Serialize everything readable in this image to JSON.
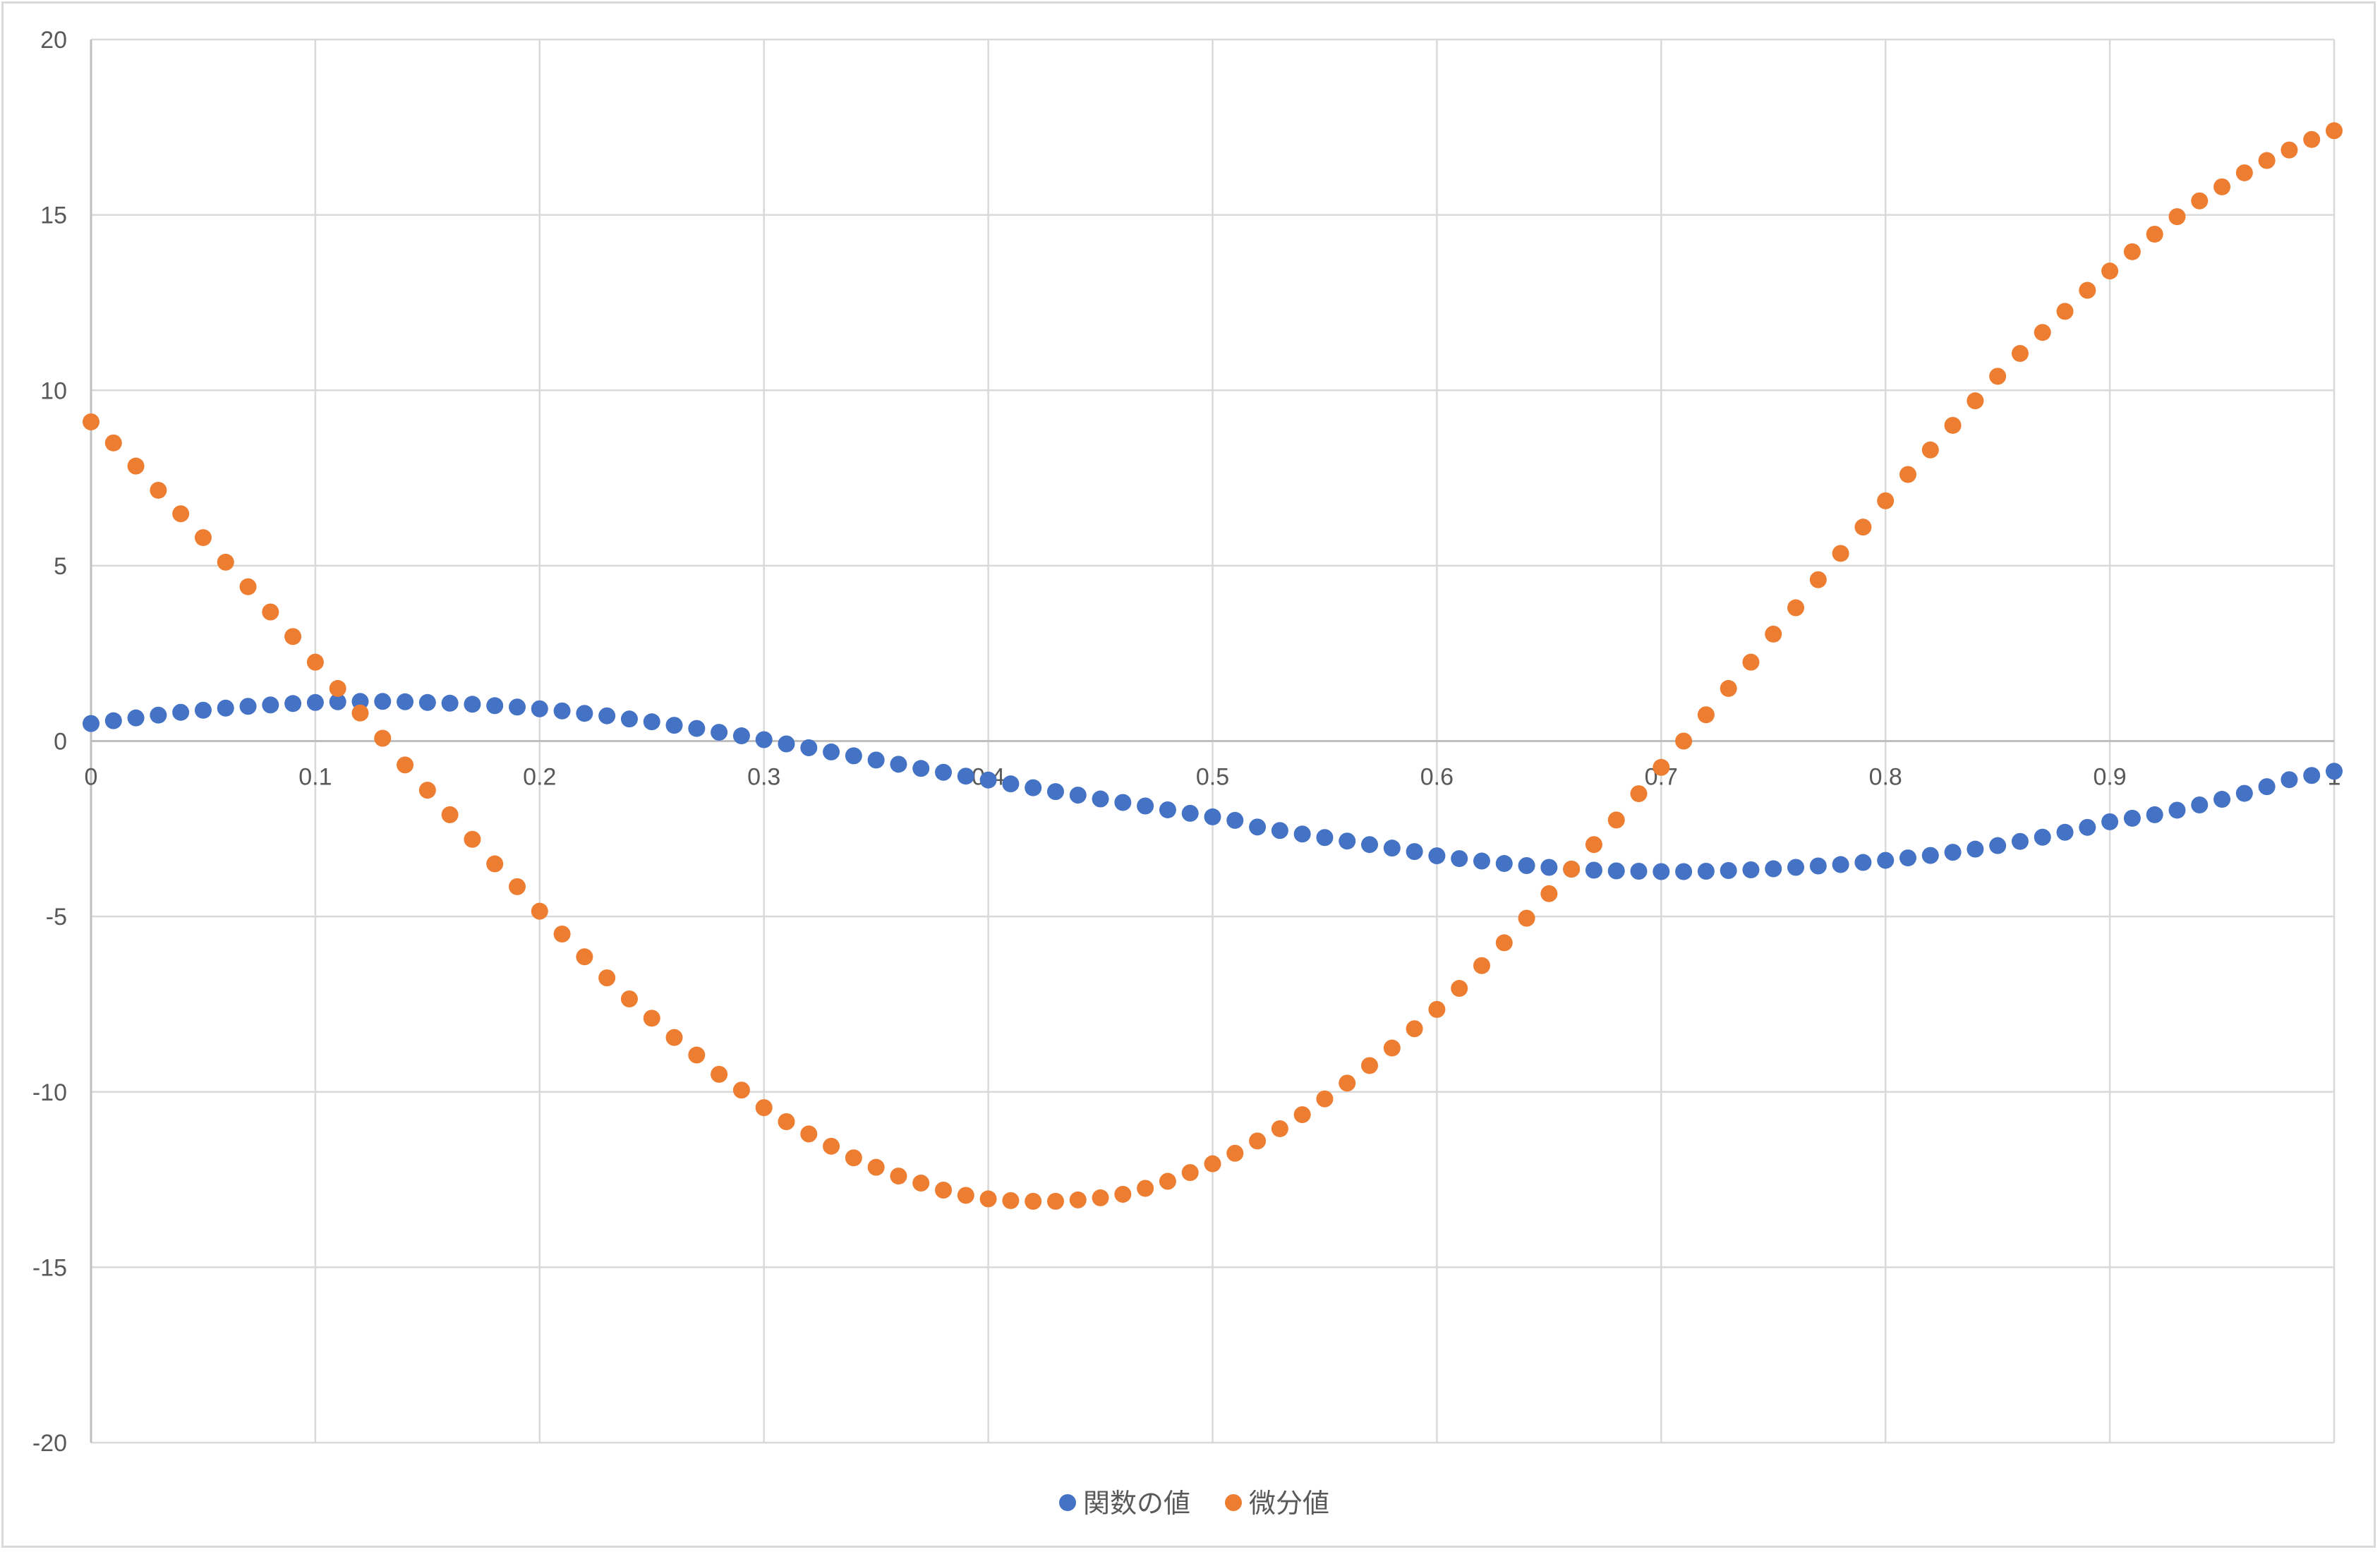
{
  "chart_data": {
    "type": "scatter",
    "title": "",
    "xlabel": "",
    "ylabel": "",
    "xlim": [
      0,
      1
    ],
    "ylim": [
      -20,
      20
    ],
    "x_ticks": [
      0,
      0.1,
      0.2,
      0.3,
      0.4,
      0.5,
      0.6,
      0.7,
      0.8,
      0.9,
      1
    ],
    "x_tick_labels": [
      "0",
      "0.1",
      "0.2",
      "0.3",
      "0.4",
      "0.5",
      "0.6",
      "0.7",
      "0.8",
      "0.9",
      "1"
    ],
    "y_ticks": [
      20,
      15,
      10,
      5,
      0,
      -5,
      -10,
      -15,
      -20
    ],
    "y_tick_labels": [
      "20",
      "15",
      "10",
      "5",
      "0",
      "-5",
      "-10",
      "-15",
      "-20"
    ],
    "grid": true,
    "legend_position": "bottom",
    "series": [
      {
        "name": "関数の値",
        "color": "#4472c4",
        "x": [
          0,
          0.01,
          0.02,
          0.03,
          0.04,
          0.05,
          0.06,
          0.07,
          0.08,
          0.09,
          0.1,
          0.11,
          0.12,
          0.13,
          0.14,
          0.15,
          0.16,
          0.17,
          0.18,
          0.19,
          0.2,
          0.21,
          0.22,
          0.23,
          0.24,
          0.25,
          0.26,
          0.27,
          0.28,
          0.29,
          0.3,
          0.31,
          0.32,
          0.33,
          0.34,
          0.35,
          0.36,
          0.37,
          0.38,
          0.39,
          0.4,
          0.41,
          0.42,
          0.43,
          0.44,
          0.45,
          0.46,
          0.47,
          0.48,
          0.49,
          0.5,
          0.51,
          0.52,
          0.53,
          0.54,
          0.55,
          0.56,
          0.57,
          0.58,
          0.59,
          0.6,
          0.61,
          0.62,
          0.63,
          0.64,
          0.65,
          0.66,
          0.67,
          0.68,
          0.69,
          0.7,
          0.71,
          0.72,
          0.73,
          0.74,
          0.75,
          0.76,
          0.77,
          0.78,
          0.79,
          0.8,
          0.81,
          0.82,
          0.83,
          0.84,
          0.85,
          0.86,
          0.87,
          0.88,
          0.89,
          0.9,
          0.91,
          0.92,
          0.93,
          0.94,
          0.95,
          0.96,
          0.97,
          0.98,
          0.99,
          1
        ],
        "values": [
          0.5,
          0.58,
          0.66,
          0.74,
          0.82,
          0.88,
          0.94,
          0.99,
          1.03,
          1.07,
          1.1,
          1.12,
          1.13,
          1.13,
          1.12,
          1.1,
          1.08,
          1.05,
          1.01,
          0.97,
          0.92,
          0.86,
          0.79,
          0.72,
          0.63,
          0.55,
          0.45,
          0.36,
          0.25,
          0.15,
          0.04,
          -0.08,
          -0.19,
          -0.31,
          -0.42,
          -0.54,
          -0.66,
          -0.78,
          -0.89,
          -1.0,
          -1.11,
          -1.22,
          -1.33,
          -1.44,
          -1.54,
          -1.65,
          -1.75,
          -1.85,
          -1.96,
          -2.06,
          -2.16,
          -2.26,
          -2.45,
          -2.55,
          -2.65,
          -2.75,
          -2.85,
          -2.95,
          -3.05,
          -3.15,
          -3.27,
          -3.35,
          -3.42,
          -3.49,
          -3.55,
          -3.6,
          -3.65,
          -3.68,
          -3.7,
          -3.71,
          -3.72,
          -3.72,
          -3.71,
          -3.69,
          -3.67,
          -3.64,
          -3.6,
          -3.56,
          -3.52,
          -3.46,
          -3.4,
          -3.33,
          -3.26,
          -3.17,
          -3.08,
          -2.98,
          -2.86,
          -2.74,
          -2.6,
          -2.46,
          -2.3,
          -2.2,
          -2.1,
          -1.97,
          -1.82,
          -1.66,
          -1.49,
          -1.3,
          -1.1,
          -0.98,
          -0.86
        ]
      },
      {
        "name": "微分値",
        "color": "#ed7d31",
        "x": [
          0,
          0.01,
          0.02,
          0.03,
          0.04,
          0.05,
          0.06,
          0.07,
          0.08,
          0.09,
          0.1,
          0.11,
          0.12,
          0.13,
          0.14,
          0.15,
          0.16,
          0.17,
          0.18,
          0.19,
          0.2,
          0.21,
          0.22,
          0.23,
          0.24,
          0.25,
          0.26,
          0.27,
          0.28,
          0.29,
          0.3,
          0.31,
          0.32,
          0.33,
          0.34,
          0.35,
          0.36,
          0.37,
          0.38,
          0.39,
          0.4,
          0.41,
          0.42,
          0.43,
          0.44,
          0.45,
          0.46,
          0.47,
          0.48,
          0.49,
          0.5,
          0.51,
          0.52,
          0.53,
          0.54,
          0.55,
          0.56,
          0.57,
          0.58,
          0.59,
          0.6,
          0.61,
          0.62,
          0.63,
          0.64,
          0.65,
          0.66,
          0.67,
          0.68,
          0.69,
          0.7,
          0.71,
          0.72,
          0.73,
          0.74,
          0.75,
          0.76,
          0.77,
          0.78,
          0.79,
          0.8,
          0.81,
          0.82,
          0.83,
          0.84,
          0.85,
          0.86,
          0.87,
          0.88,
          0.89,
          0.9,
          0.91,
          0.92,
          0.93,
          0.94,
          0.95,
          0.96,
          0.97,
          0.98,
          0.99,
          1
        ],
        "values": [
          9.1,
          8.5,
          7.84,
          7.15,
          6.48,
          5.8,
          5.1,
          4.4,
          3.68,
          2.98,
          2.25,
          1.5,
          0.8,
          0.08,
          -0.68,
          -1.4,
          -2.1,
          -2.8,
          -3.5,
          -4.15,
          -4.85,
          -5.5,
          -6.15,
          -6.75,
          -7.35,
          -7.9,
          -8.45,
          -8.95,
          -9.5,
          -9.95,
          -10.45,
          -10.85,
          -11.2,
          -11.55,
          -11.88,
          -12.15,
          -12.4,
          -12.6,
          -12.8,
          -12.95,
          -13.05,
          -13.1,
          -13.12,
          -13.12,
          -13.08,
          -13.02,
          -12.92,
          -12.75,
          -12.55,
          -12.3,
          -12.05,
          -11.75,
          -11.4,
          -11.05,
          -10.65,
          -10.2,
          -9.75,
          -9.25,
          -8.75,
          -8.2,
          -7.65,
          -7.05,
          -6.4,
          -5.75,
          -5.05,
          -4.35,
          -3.65,
          -2.95,
          -2.25,
          -1.5,
          -0.75,
          0.0,
          0.75,
          1.5,
          2.25,
          3.05,
          3.8,
          4.6,
          5.35,
          6.1,
          6.85,
          7.6,
          8.3,
          9.0,
          9.7,
          10.4,
          11.05,
          11.65,
          12.25,
          12.85,
          13.4,
          13.95,
          14.45,
          14.95,
          15.4,
          15.8,
          16.2,
          16.55,
          16.85,
          17.15,
          17.4
        ]
      }
    ]
  }
}
